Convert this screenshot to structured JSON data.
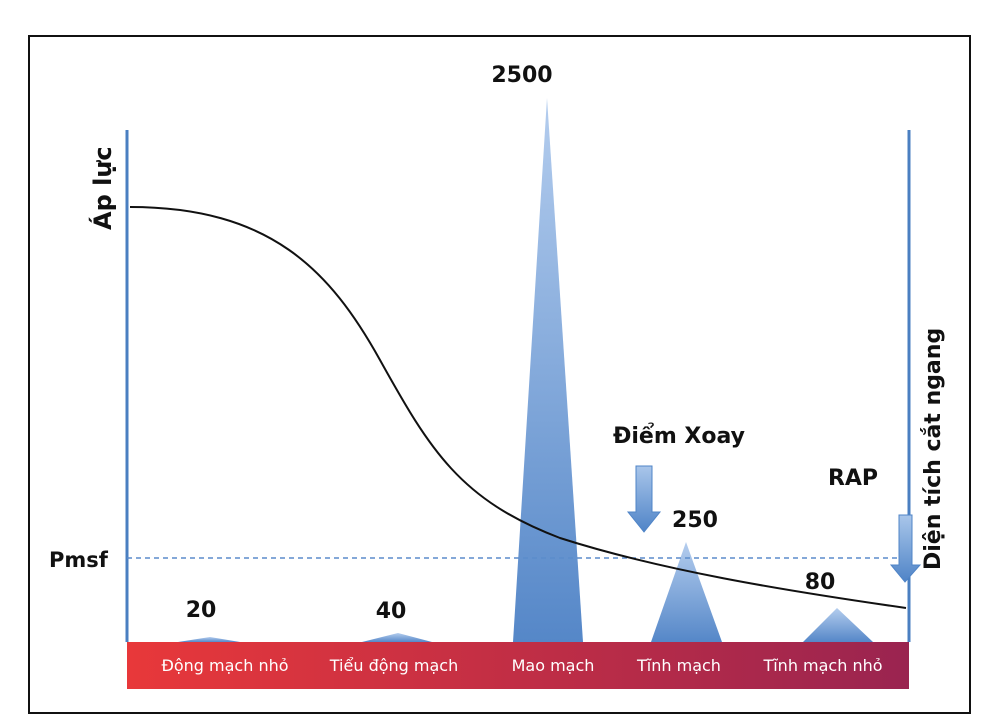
{
  "labels": {
    "pressure_axis": "Áp lực",
    "area_axis": "Diện tích cắt ngang",
    "pmsf": "Pmsf",
    "pivot": "Điểm Xoay",
    "rap": "RAP"
  },
  "segments": [
    {
      "name": "Động mạch nhỏ",
      "area": "20"
    },
    {
      "name": "Tiểu động mạch",
      "area": "40"
    },
    {
      "name": "Mao mạch",
      "area": "2500"
    },
    {
      "name": "Tĩnh mạch",
      "area": "250"
    },
    {
      "name": "Tĩnh mạch nhỏ",
      "area": "80"
    }
  ],
  "colors": {
    "axis_line": "#4a7fc1",
    "peak_top": "#a9c6ea",
    "peak_bottom": "#5b8ccc",
    "band_left": "#e8383a",
    "band_right": "#9a2450",
    "curve": "#111111",
    "dashed": "#5b8ccc"
  }
}
